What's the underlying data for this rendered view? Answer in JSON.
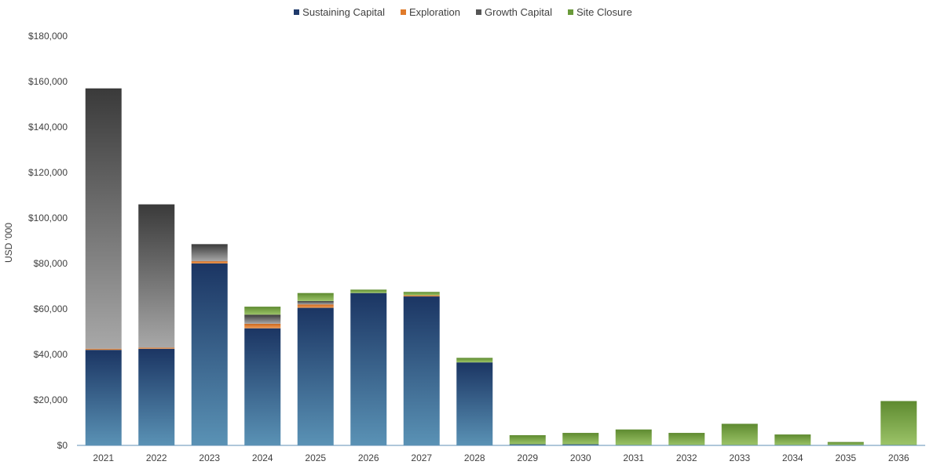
{
  "chart_data": {
    "type": "bar",
    "stacked": true,
    "categories": [
      "2021",
      "2022",
      "2023",
      "2024",
      "2025",
      "2026",
      "2027",
      "2028",
      "2029",
      "2030",
      "2031",
      "2032",
      "2033",
      "2034",
      "2035",
      "2036"
    ],
    "series": [
      {
        "name": "Sustaining Capital",
        "color": "#1f3a6b",
        "values": [
          42000,
          42500,
          80000,
          51500,
          60500,
          67000,
          65500,
          36500,
          500,
          500,
          0,
          0,
          0,
          0,
          0,
          0
        ]
      },
      {
        "name": "Exploration",
        "color": "#e07b2a",
        "values": [
          500,
          500,
          1000,
          2000,
          1500,
          0,
          500,
          0,
          0,
          0,
          0,
          0,
          0,
          0,
          0,
          0
        ]
      },
      {
        "name": "Growth Capital",
        "color": "#555555",
        "values": [
          114500,
          63000,
          7500,
          4000,
          1500,
          0,
          0,
          0,
          0,
          0,
          0,
          0,
          0,
          0,
          0,
          0
        ]
      },
      {
        "name": "Site Closure",
        "color": "#6a9a3a",
        "values": [
          0,
          0,
          0,
          3500,
          3500,
          1500,
          1500,
          2000,
          4000,
          5000,
          7000,
          5500,
          9500,
          4800,
          1500,
          19500
        ]
      }
    ],
    "ylabel": "USD '000",
    "ylim": [
      0,
      180000
    ],
    "yticks": [
      0,
      20000,
      40000,
      60000,
      80000,
      100000,
      120000,
      140000,
      160000,
      180000
    ],
    "ytick_labels": [
      "$0",
      "$20,000",
      "$40,000",
      "$60,000",
      "$80,000",
      "$100,000",
      "$120,000",
      "$140,000",
      "$160,000",
      "$180,000"
    ],
    "grid": false,
    "legend_position": "top"
  }
}
